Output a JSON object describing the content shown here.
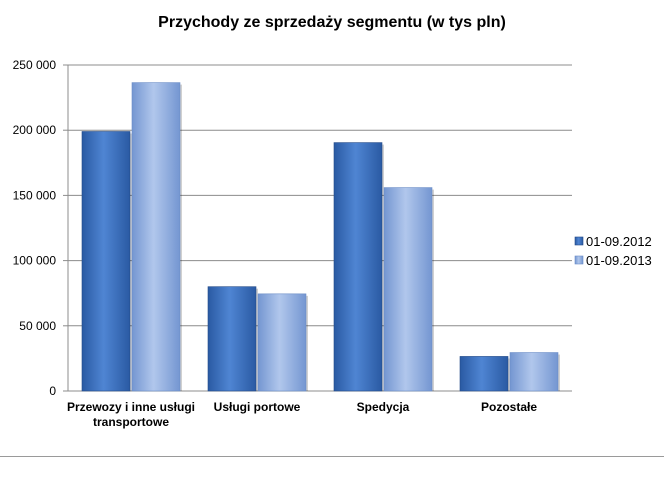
{
  "chart_data": {
    "type": "bar",
    "title": "Przychody ze sprzedaży segmentu (w tys pln)",
    "categories": [
      [
        "Przewozy i inne usługi",
        "transportowe"
      ],
      [
        "Usługi portowe"
      ],
      [
        "Spedycja"
      ],
      [
        "Pozostałe"
      ]
    ],
    "series": [
      {
        "name": "01-09.2012",
        "values": [
          199000,
          80000,
          190500,
          26500
        ],
        "color": "#2f62ae",
        "color_light": "#4f85d3"
      },
      {
        "name": "01-09.2013",
        "values": [
          236500,
          74500,
          156000,
          29500
        ],
        "color": "#7e9fd6",
        "color_light": "#a8c0e8"
      }
    ],
    "ylim": [
      0,
      250000
    ],
    "yticks": [
      0,
      50000,
      100000,
      150000,
      200000,
      250000
    ],
    "ytick_labels": [
      "0",
      "50 000",
      "100 000",
      "150 000",
      "200 000",
      "250 000"
    ],
    "grid": true,
    "legend_position": "right"
  }
}
